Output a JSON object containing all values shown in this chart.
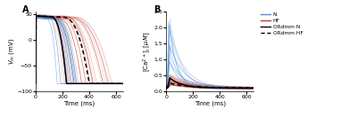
{
  "panel_A_label": "A",
  "panel_B_label": "B",
  "xlabel": "Time (ms)",
  "ylabel_A": "V_m (mV)",
  "ylabel_B": "[Ca2+]_i [μM]",
  "xlim": [
    0,
    650
  ],
  "ylim_A": [
    -100,
    55
  ],
  "ylim_B": [
    0,
    2.5
  ],
  "yticks_A": [
    -100,
    -50,
    0,
    50
  ],
  "yticks_B": [
    0.0,
    0.5,
    1.0,
    1.5,
    2.0,
    2.5
  ],
  "xticks": [
    0,
    200,
    400,
    600
  ],
  "color_N": "#4A90D9",
  "color_HF": "#C0392B",
  "n_N_traces": 10,
  "n_HF_traces": 30,
  "background_color": "#FFFFFF",
  "legend_labels": [
    "N",
    "HF",
    "ORdmm N",
    "ORdmm HF"
  ]
}
